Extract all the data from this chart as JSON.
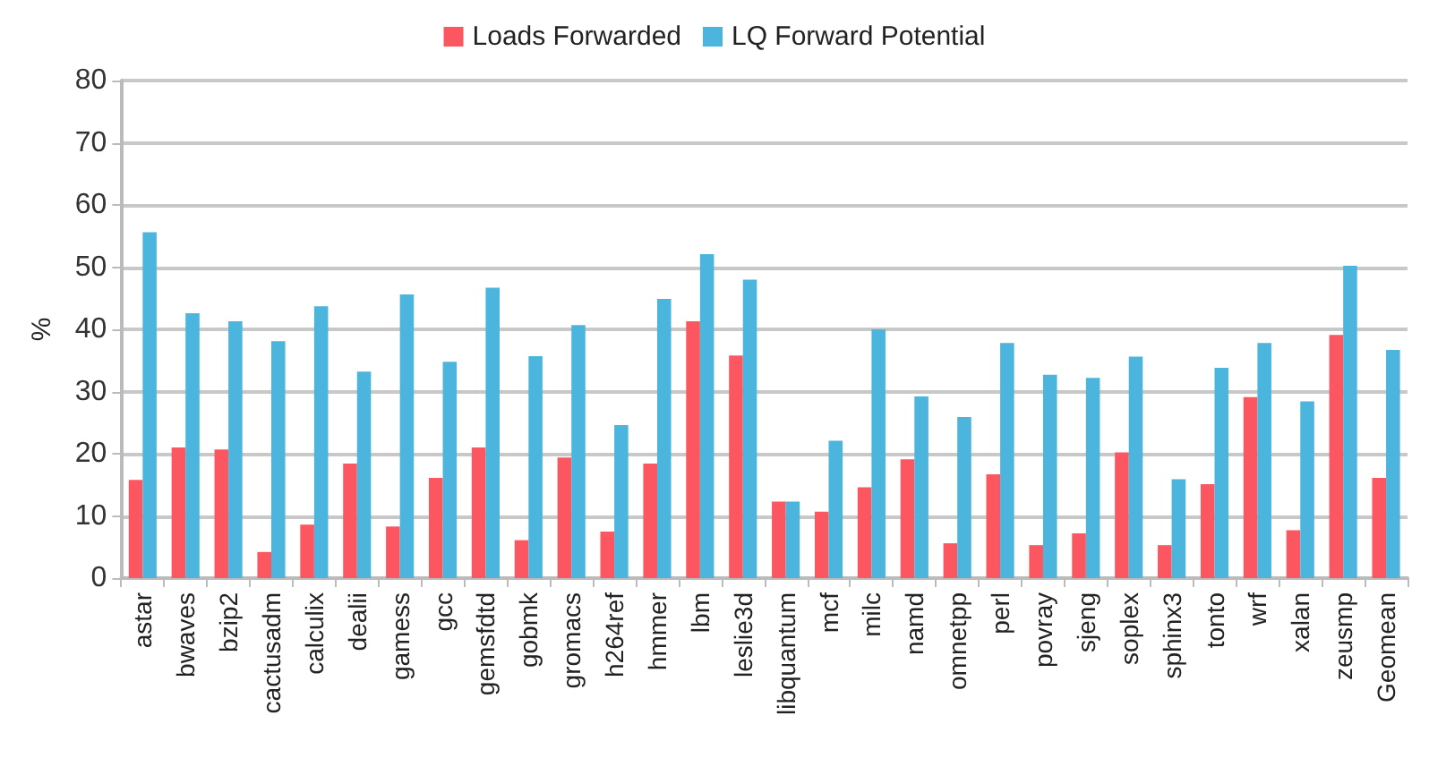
{
  "chart_data": {
    "type": "bar",
    "ylabel": "%",
    "categories": [
      "astar",
      "bwaves",
      "bzip2",
      "cactusadm",
      "calculix",
      "dealii",
      "gamess",
      "gcc",
      "gemsfdtd",
      "gobmk",
      "gromacs",
      "h264ref",
      "hmmer",
      "lbm",
      "leslie3d",
      "libquantum",
      "mcf",
      "milc",
      "namd",
      "omnetpp",
      "perl",
      "povray",
      "sjeng",
      "soplex",
      "sphinx3",
      "tonto",
      "wrf",
      "xalan",
      "zeusmp",
      "Geomean"
    ],
    "series": [
      {
        "name": "Loads Forwarded",
        "color": "#fc5661",
        "values": [
          15.8,
          21,
          20.7,
          4.2,
          8.6,
          18.4,
          8.3,
          16.1,
          21,
          6.1,
          19.4,
          7.5,
          18.4,
          41.3,
          35.8,
          12.3,
          10.7,
          14.6,
          19.1,
          5.6,
          16.7,
          5.3,
          7.2,
          20.2,
          5.3,
          15.1,
          29.1,
          7.7,
          39.1,
          16.1
        ]
      },
      {
        "name": "LQ Forward Potential",
        "color": "#4bb5dd",
        "values": [
          55.6,
          42.6,
          41.3,
          38.1,
          43.7,
          33.2,
          45.6,
          34.8,
          46.7,
          35.7,
          40.7,
          24.6,
          44.9,
          52.1,
          48.0,
          12.3,
          22.1,
          40.0,
          29.2,
          25.9,
          37.8,
          32.7,
          32.2,
          35.6,
          15.9,
          33.8,
          37.8,
          28.4,
          50.2,
          36.7
        ]
      }
    ],
    "ylim": [
      0,
      80
    ],
    "yticks": [
      0,
      10,
      20,
      30,
      40,
      50,
      60,
      70,
      80
    ],
    "grid": "y",
    "legend": "top"
  }
}
